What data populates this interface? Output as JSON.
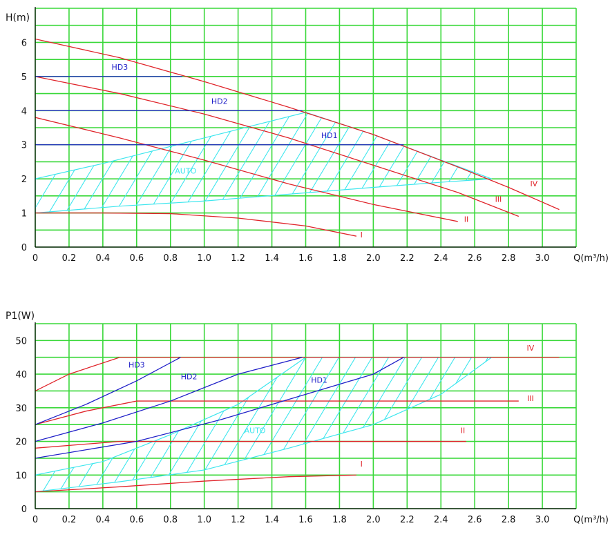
{
  "colors": {
    "grid": "#39d839",
    "axis": "#000000",
    "red": "#e0252b",
    "blue": "#2020c8",
    "cyan": "#3ee6ee",
    "orange": "#d66e1e"
  },
  "chart_data": [
    {
      "id": "head",
      "type": "line",
      "ylabel": "H(m)",
      "xlabel": "Q(m³/h)",
      "xlim": [
        0,
        3.2
      ],
      "ylim": [
        0,
        7
      ],
      "grid": true,
      "x_ticks": [
        "0",
        "0.2",
        "0.4",
        "0.6",
        "0.8",
        "1.0",
        "1.2",
        "1.4",
        "1.6",
        "1.8",
        "2.0",
        "2.2",
        "2.4",
        "2.6",
        "2.8",
        "3.0"
      ],
      "y_ticks": [
        "0",
        "1",
        "2",
        "3",
        "4",
        "5",
        "6"
      ],
      "series": [
        {
          "name": "IV",
          "color": "red",
          "points": [
            [
              0,
              6.1
            ],
            [
              0.5,
              5.55
            ],
            [
              1.0,
              4.85
            ],
            [
              1.5,
              4.1
            ],
            [
              2.0,
              3.3
            ],
            [
              2.5,
              2.35
            ],
            [
              2.8,
              1.75
            ],
            [
              3.1,
              1.1
            ]
          ]
        },
        {
          "name": "III",
          "color": "red",
          "points": [
            [
              0,
              5.0
            ],
            [
              0.5,
              4.5
            ],
            [
              1.0,
              3.9
            ],
            [
              1.5,
              3.2
            ],
            [
              2.0,
              2.4
            ],
            [
              2.5,
              1.6
            ],
            [
              2.86,
              0.9
            ]
          ]
        },
        {
          "name": "II",
          "color": "red",
          "points": [
            [
              0,
              3.8
            ],
            [
              0.5,
              3.2
            ],
            [
              1.0,
              2.55
            ],
            [
              1.5,
              1.85
            ],
            [
              2.0,
              1.25
            ],
            [
              2.5,
              0.75
            ]
          ]
        },
        {
          "name": "I",
          "color": "red",
          "points": [
            [
              0,
              1.0
            ],
            [
              0.4,
              1.0
            ],
            [
              0.8,
              0.98
            ],
            [
              1.2,
              0.85
            ],
            [
              1.6,
              0.62
            ],
            [
              1.9,
              0.32
            ]
          ]
        },
        {
          "name": "HD3",
          "color": "blue",
          "points": [
            [
              0,
              5.0
            ],
            [
              0.87,
              5.0
            ]
          ]
        },
        {
          "name": "HD2",
          "color": "blue",
          "points": [
            [
              0,
              4.0
            ],
            [
              1.58,
              4.0
            ]
          ]
        },
        {
          "name": "HD1",
          "color": "blue",
          "points": [
            [
              0,
              3.0
            ],
            [
              2.18,
              3.0
            ]
          ]
        }
      ],
      "auto_region": {
        "upper": [
          [
            0,
            2.0
          ],
          [
            0.4,
            2.45
          ],
          [
            0.8,
            2.95
          ],
          [
            1.2,
            3.45
          ],
          [
            1.6,
            3.95
          ],
          [
            2.0,
            3.3
          ],
          [
            2.4,
            2.55
          ],
          [
            2.7,
            2.0
          ]
        ],
        "lower": [
          [
            0,
            1.0
          ],
          [
            0.5,
            1.2
          ],
          [
            1.0,
            1.35
          ],
          [
            1.5,
            1.55
          ],
          [
            2.0,
            1.75
          ],
          [
            2.4,
            1.9
          ],
          [
            2.7,
            2.0
          ]
        ]
      },
      "labels": [
        {
          "text": "HD3",
          "x": 0.5,
          "y": 5.2,
          "color": "blue"
        },
        {
          "text": "HD2",
          "x": 1.09,
          "y": 4.2,
          "color": "blue"
        },
        {
          "text": "HD1",
          "x": 1.74,
          "y": 3.2,
          "color": "blue"
        },
        {
          "text": "AUTO",
          "x": 0.89,
          "y": 2.15,
          "color": "cyan"
        },
        {
          "text": "IV",
          "x": 2.95,
          "y": 1.78,
          "color": "red"
        },
        {
          "text": "III",
          "x": 2.74,
          "y": 1.33,
          "color": "red"
        },
        {
          "text": "II",
          "x": 2.55,
          "y": 0.74,
          "color": "red"
        },
        {
          "text": "I",
          "x": 1.93,
          "y": 0.28,
          "color": "red"
        }
      ]
    },
    {
      "id": "power",
      "type": "line",
      "ylabel": "P1(W)",
      "xlabel": "Q(m³/h)",
      "xlim": [
        0,
        3.2
      ],
      "ylim": [
        0,
        55
      ],
      "grid": true,
      "x_ticks": [
        "0",
        "0.2",
        "0.4",
        "0.6",
        "0.8",
        "1.0",
        "1.2",
        "1.4",
        "1.6",
        "1.8",
        "2.0",
        "2.2",
        "2.4",
        "2.6",
        "2.8",
        "3.0"
      ],
      "y_ticks": [
        "0",
        "10",
        "20",
        "30",
        "40",
        "50"
      ],
      "series": [
        {
          "name": "IV",
          "color": "red",
          "points": [
            [
              0,
              35
            ],
            [
              0.2,
              40
            ],
            [
              0.5,
              45
            ],
            [
              3.1,
              45
            ]
          ]
        },
        {
          "name": "III",
          "color": "red",
          "points": [
            [
              0,
              25
            ],
            [
              0.3,
              29
            ],
            [
              0.6,
              32
            ],
            [
              2.86,
              32
            ]
          ]
        },
        {
          "name": "II",
          "color": "red",
          "points": [
            [
              0,
              18
            ],
            [
              0.5,
              20
            ],
            [
              2.55,
              20
            ]
          ]
        },
        {
          "name": "I",
          "color": "red",
          "points": [
            [
              0,
              5
            ],
            [
              0.5,
              6.5
            ],
            [
              1.0,
              8.2
            ],
            [
              1.5,
              9.5
            ],
            [
              1.9,
              10
            ]
          ]
        },
        {
          "name": "HD3",
          "color": "blue",
          "points": [
            [
              0,
              25
            ],
            [
              0.3,
              31
            ],
            [
              0.6,
              38
            ],
            [
              0.86,
              45
            ]
          ]
        },
        {
          "name": "HD2",
          "color": "blue",
          "points": [
            [
              0,
              20
            ],
            [
              0.4,
              25.5
            ],
            [
              0.8,
              32
            ],
            [
              1.2,
              40
            ],
            [
              1.58,
              45
            ]
          ]
        },
        {
          "name": "HD1",
          "color": "blue",
          "points": [
            [
              0,
              15
            ],
            [
              0.6,
              20
            ],
            [
              1.1,
              26.5
            ],
            [
              1.6,
              34
            ],
            [
              2.0,
              40
            ],
            [
              2.18,
              45
            ]
          ]
        }
      ],
      "auto_region": {
        "upper": [
          [
            0,
            10
          ],
          [
            0.4,
            14
          ],
          [
            0.8,
            22
          ],
          [
            1.2,
            31
          ],
          [
            1.6,
            45
          ],
          [
            2.7,
            45
          ]
        ],
        "lower": [
          [
            0,
            5
          ],
          [
            0.5,
            8
          ],
          [
            1.0,
            11.5
          ],
          [
            1.5,
            18
          ],
          [
            2.0,
            25
          ],
          [
            2.4,
            34
          ],
          [
            2.7,
            45
          ]
        ]
      },
      "labels": [
        {
          "text": "HD3",
          "x": 0.6,
          "y": 42,
          "color": "blue"
        },
        {
          "text": "HD2",
          "x": 0.91,
          "y": 38.5,
          "color": "blue"
        },
        {
          "text": "HD1",
          "x": 1.68,
          "y": 37.5,
          "color": "blue"
        },
        {
          "text": "AUTO",
          "x": 1.3,
          "y": 22.5,
          "color": "cyan"
        },
        {
          "text": "IV",
          "x": 2.93,
          "y": 47,
          "color": "red"
        },
        {
          "text": "III",
          "x": 2.93,
          "y": 32,
          "color": "red"
        },
        {
          "text": "II",
          "x": 2.53,
          "y": 22.5,
          "color": "red"
        },
        {
          "text": "I",
          "x": 1.93,
          "y": 12.5,
          "color": "red"
        }
      ]
    }
  ]
}
